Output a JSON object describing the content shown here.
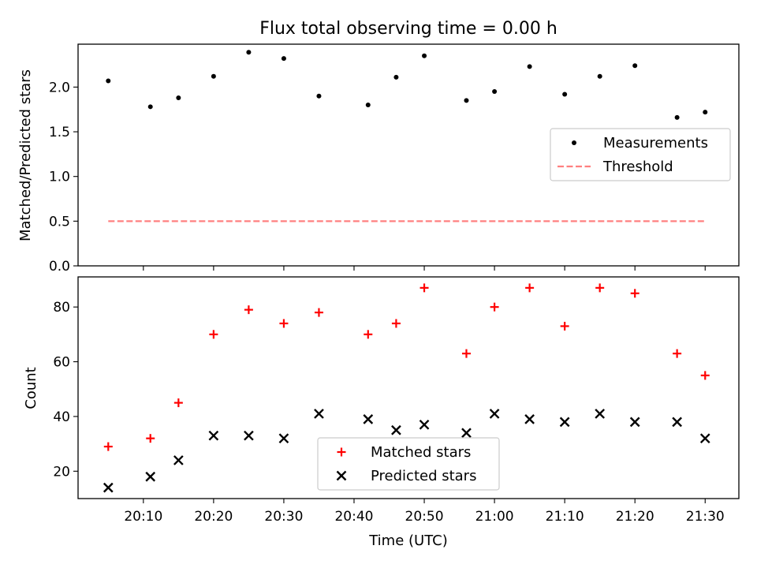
{
  "title": "Flux total observing time = 0.00 h",
  "xlabel": "Time (UTC)",
  "colors": {
    "measurement": "#000000",
    "threshold": "#ff8080",
    "matched": "#ff0000",
    "predicted": "#000000"
  },
  "chart_data": [
    {
      "type": "scatter",
      "title": "Flux total observing time = 0.00 h",
      "xlabel": "",
      "ylabel": "Matched/Predicted stars",
      "ylim": [
        0,
        2.48
      ],
      "y_ticks": [
        0.0,
        0.5,
        1.0,
        1.5,
        2.0
      ],
      "y_tick_labels": [
        "0.0",
        "0.5",
        "1.0",
        "1.5",
        "2.0"
      ],
      "x": [
        "20:05",
        "20:11",
        "20:15",
        "20:20",
        "20:25",
        "20:30",
        "20:35",
        "20:42",
        "20:46",
        "20:50",
        "20:56",
        "21:00",
        "21:05",
        "21:10",
        "21:15",
        "21:20",
        "21:26",
        "21:30"
      ],
      "series": [
        {
          "name": "Measurements",
          "marker": "dot",
          "values": [
            2.07,
            1.78,
            1.88,
            2.12,
            2.39,
            2.32,
            1.9,
            1.8,
            2.11,
            2.35,
            1.85,
            1.95,
            2.23,
            1.92,
            2.12,
            2.24,
            1.66,
            1.72
          ]
        },
        {
          "name": "Threshold",
          "marker": "dashed-line",
          "x": [
            "20:05",
            "21:30"
          ],
          "values": [
            0.5,
            0.5
          ]
        }
      ],
      "legend": "center-right",
      "grid": false
    },
    {
      "type": "scatter",
      "xlabel": "Time (UTC)",
      "ylabel": "Count",
      "ylim": [
        10,
        91
      ],
      "y_ticks": [
        20,
        40,
        60,
        80
      ],
      "y_tick_labels": [
        "20",
        "40",
        "60",
        "80"
      ],
      "x_ticks": [
        "20:10",
        "20:20",
        "20:30",
        "20:40",
        "20:50",
        "21:00",
        "21:10",
        "21:20",
        "21:30"
      ],
      "x": [
        "20:05",
        "20:11",
        "20:15",
        "20:20",
        "20:25",
        "20:30",
        "20:35",
        "20:42",
        "20:46",
        "20:50",
        "20:56",
        "21:00",
        "21:05",
        "21:10",
        "21:15",
        "21:20",
        "21:26",
        "21:30"
      ],
      "series": [
        {
          "name": "Matched stars",
          "marker": "plus",
          "values": [
            29,
            32,
            45,
            70,
            79,
            74,
            78,
            70,
            74,
            87,
            63,
            80,
            87,
            73,
            87,
            85,
            63,
            55
          ]
        },
        {
          "name": "Predicted stars",
          "marker": "x",
          "values": [
            14,
            18,
            24,
            33,
            33,
            32,
            41,
            39,
            35,
            37,
            34,
            41,
            39,
            38,
            41,
            38,
            38,
            32
          ]
        }
      ],
      "legend": "bottom-center",
      "grid": false
    }
  ]
}
